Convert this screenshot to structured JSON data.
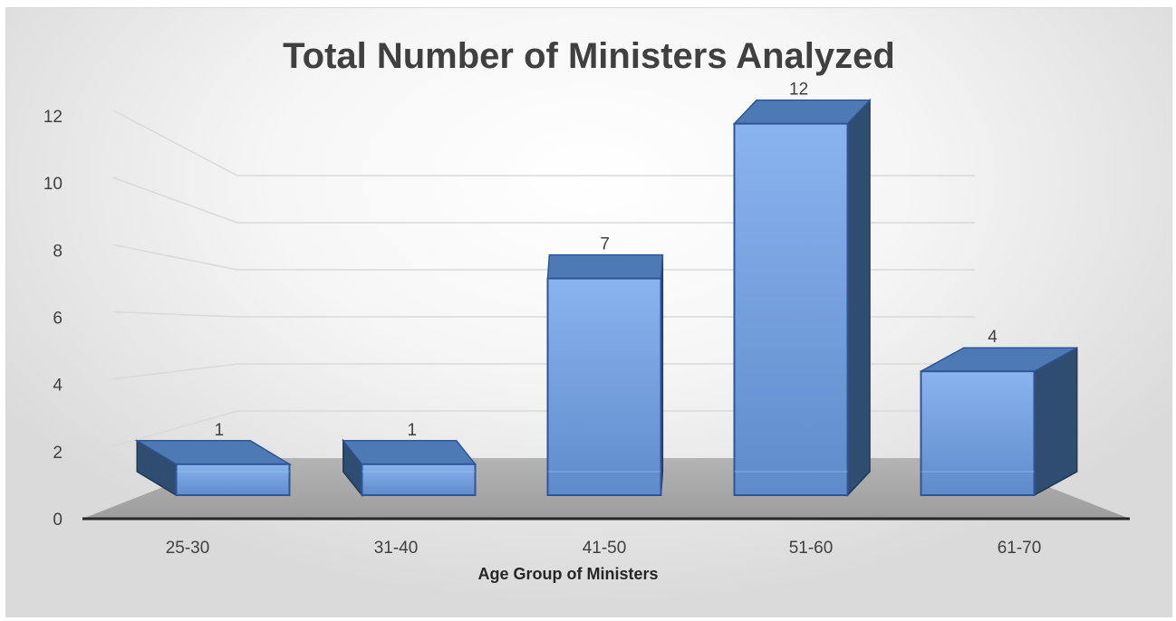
{
  "chart_data": {
    "type": "bar",
    "title": "Total Number of Ministers Analyzed",
    "xlabel": "Age Group of Ministers",
    "ylabel": "",
    "categories": [
      "25-30",
      "31-40",
      "41-50",
      "51-60",
      "61-70"
    ],
    "values": [
      1,
      1,
      7,
      12,
      4
    ],
    "data_labels": [
      "1",
      "1",
      "7",
      "12",
      "4"
    ],
    "ylim": [
      0,
      12
    ],
    "yticks": [
      "0",
      "2",
      "4",
      "6",
      "8",
      "10",
      "12"
    ],
    "grid": true,
    "legend": "none",
    "style": "3d-column",
    "colors": {
      "bar_front": "#6d9be0",
      "bar_side": "#2f4d70",
      "bar_top": "#4d7ab5",
      "floor": "#a6a6a6",
      "text": "#404040"
    }
  }
}
